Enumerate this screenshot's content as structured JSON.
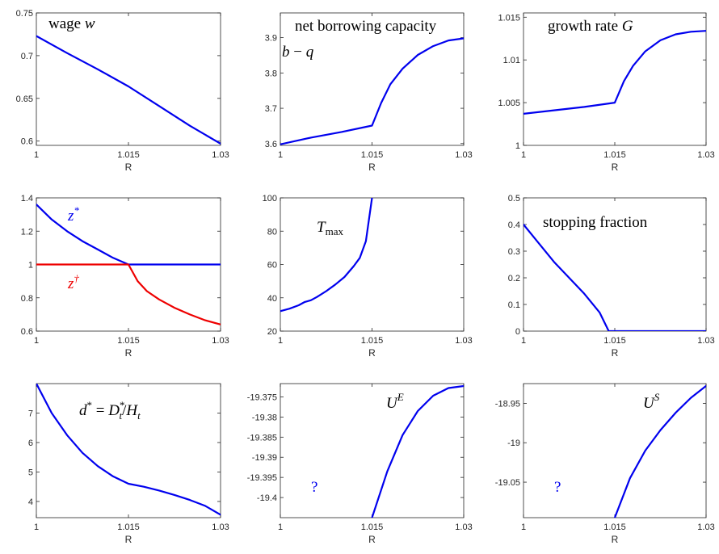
{
  "chart_data": [
    {
      "type": "line",
      "title": "",
      "xlabel": "R",
      "ylabel": "",
      "xlim": [
        1,
        1.03
      ],
      "ylim": [
        0.595,
        0.75
      ],
      "xticks": [
        1,
        1.015,
        1.03
      ],
      "xtick_labels": [
        "1",
        "1.015",
        "1.03"
      ],
      "yticks": [
        0.6,
        0.65,
        0.7,
        0.75
      ],
      "ytick_labels": [
        "0.6",
        "0.65",
        "0.7",
        "0.75"
      ],
      "annotation": "wage w",
      "series": [
        {
          "name": "",
          "color": "#0000ee",
          "x": [
            1,
            1.005,
            1.01,
            1.015,
            1.02,
            1.025,
            1.03
          ],
          "y": [
            0.723,
            0.703,
            0.684,
            0.664,
            0.641,
            0.618,
            0.597
          ]
        }
      ]
    },
    {
      "type": "line",
      "title": "",
      "xlabel": "R",
      "ylabel": "",
      "xlim": [
        1,
        1.03
      ],
      "ylim": [
        3.595,
        3.97
      ],
      "xticks": [
        1,
        1.015,
        1.03
      ],
      "xtick_labels": [
        "1",
        "1.015",
        "1.03"
      ],
      "yticks": [
        3.6,
        3.7,
        3.8,
        3.9
      ],
      "ytick_labels": [
        "3.6",
        "3.7",
        "3.8",
        "3.9"
      ],
      "annotation": "net borrowing capacity b − q",
      "series": [
        {
          "name": "",
          "color": "#0000ee",
          "x": [
            1,
            1.005,
            1.01,
            1.015,
            1.0165,
            1.018,
            1.02,
            1.0225,
            1.025,
            1.0275,
            1.03
          ],
          "y": [
            3.598,
            3.617,
            3.633,
            3.651,
            3.715,
            3.768,
            3.812,
            3.851,
            3.876,
            3.892,
            3.898
          ]
        }
      ]
    },
    {
      "type": "line",
      "title": "",
      "xlabel": "R",
      "ylabel": "",
      "xlim": [
        1,
        1.03
      ],
      "ylim": [
        1,
        1.0155
      ],
      "xticks": [
        1,
        1.015,
        1.03
      ],
      "xtick_labels": [
        "1",
        "1.015",
        "1.03"
      ],
      "yticks": [
        1,
        1.005,
        1.01,
        1.015
      ],
      "ytick_labels": [
        "1",
        "1.005",
        "1.01",
        "1.015"
      ],
      "annotation": "growth rate G",
      "series": [
        {
          "name": "",
          "color": "#0000ee",
          "x": [
            1,
            1.005,
            1.01,
            1.015,
            1.0165,
            1.018,
            1.02,
            1.0225,
            1.025,
            1.0275,
            1.03
          ],
          "y": [
            1.0037,
            1.0041,
            1.0045,
            1.005,
            1.0075,
            1.0093,
            1.011,
            1.0123,
            1.013,
            1.0133,
            1.0134
          ]
        }
      ]
    },
    {
      "type": "line",
      "title": "",
      "xlabel": "R",
      "ylabel": "",
      "xlim": [
        1,
        1.03
      ],
      "ylim": [
        0.6,
        1.4
      ],
      "xticks": [
        1,
        1.015,
        1.03
      ],
      "xtick_labels": [
        "1",
        "1.015",
        "1.03"
      ],
      "yticks": [
        0.6,
        0.8,
        1,
        1.2,
        1.4
      ],
      "ytick_labels": [
        "0.6",
        "0.8",
        "1",
        "1.2",
        "1.4"
      ],
      "annotation": "",
      "series": [
        {
          "name": "z*",
          "color": "#0000ee",
          "x": [
            1,
            1.0025,
            1.005,
            1.0075,
            1.01,
            1.0125,
            1.015,
            1.02,
            1.025,
            1.03
          ],
          "y": [
            1.36,
            1.27,
            1.2,
            1.14,
            1.09,
            1.04,
            1.0,
            1.0,
            1.0,
            1.0
          ]
        },
        {
          "name": "z†",
          "color": "#ee0000",
          "x": [
            1,
            1.005,
            1.01,
            1.015,
            1.0165,
            1.018,
            1.02,
            1.0225,
            1.025,
            1.0275,
            1.03
          ],
          "y": [
            1.0,
            1.0,
            1.0,
            1.0,
            0.9,
            0.84,
            0.79,
            0.74,
            0.7,
            0.665,
            0.64
          ]
        }
      ]
    },
    {
      "type": "line",
      "title": "",
      "xlabel": "R",
      "ylabel": "",
      "xlim": [
        1,
        1.03
      ],
      "ylim": [
        20,
        100
      ],
      "xticks": [
        1,
        1.015,
        1.03
      ],
      "xtick_labels": [
        "1",
        "1.015",
        "1.03"
      ],
      "yticks": [
        20,
        40,
        60,
        80,
        100
      ],
      "ytick_labels": [
        "20",
        "40",
        "60",
        "80",
        "100"
      ],
      "annotation": "T_max",
      "series": [
        {
          "name": "",
          "color": "#0000ee",
          "x": [
            1,
            1.0015,
            1.003,
            1.004,
            1.005,
            1.006,
            1.0075,
            1.009,
            1.0105,
            1.012,
            1.013,
            1.014,
            1.015
          ],
          "y": [
            32,
            33.5,
            35.5,
            37.5,
            38.5,
            40.5,
            44,
            48,
            52.5,
            59,
            64,
            74,
            100
          ]
        }
      ]
    },
    {
      "type": "line",
      "title": "",
      "xlabel": "R",
      "ylabel": "",
      "xlim": [
        1,
        1.03
      ],
      "ylim": [
        0,
        0.5
      ],
      "xticks": [
        1,
        1.015,
        1.03
      ],
      "xtick_labels": [
        "1",
        "1.015",
        "1.03"
      ],
      "yticks": [
        0,
        0.1,
        0.2,
        0.3,
        0.4,
        0.5
      ],
      "ytick_labels": [
        "0",
        "0.1",
        "0.2",
        "0.3",
        "0.4",
        "0.5"
      ],
      "annotation": "stopping fraction",
      "series": [
        {
          "name": "",
          "color": "#0000ee",
          "x": [
            1,
            1.0025,
            1.005,
            1.0075,
            1.01,
            1.0125,
            1.014,
            1.015,
            1.02,
            1.025,
            1.03
          ],
          "y": [
            0.4,
            0.33,
            0.26,
            0.2,
            0.14,
            0.07,
            0.0,
            0.0,
            0.0,
            0.0,
            0.0
          ]
        }
      ]
    },
    {
      "type": "line",
      "title": "",
      "xlabel": "R",
      "ylabel": "",
      "xlim": [
        1,
        1.03
      ],
      "ylim": [
        3.45,
        8.0
      ],
      "xticks": [
        1,
        1.015,
        1.03
      ],
      "xtick_labels": [
        "1",
        "1.015",
        "1.03"
      ],
      "yticks": [
        4,
        5,
        6,
        7
      ],
      "ytick_labels": [
        "4",
        "5",
        "6",
        "7"
      ],
      "annotation": "d* = D*_t / H_t",
      "series": [
        {
          "name": "",
          "color": "#0000ee",
          "x": [
            1,
            1.0025,
            1.005,
            1.0075,
            1.01,
            1.0125,
            1.015,
            1.0175,
            1.02,
            1.0225,
            1.025,
            1.0275,
            1.03
          ],
          "y": [
            8.0,
            7.0,
            6.25,
            5.65,
            5.2,
            4.85,
            4.6,
            4.5,
            4.37,
            4.22,
            4.05,
            3.85,
            3.55
          ]
        }
      ]
    },
    {
      "type": "line",
      "title": "",
      "xlabel": "R",
      "ylabel": "",
      "xlim": [
        1,
        1.03
      ],
      "ylim": [
        -19.405,
        -19.3717
      ],
      "xticks": [
        1,
        1.015,
        1.03
      ],
      "xtick_labels": [
        "1",
        "1.015",
        "1.03"
      ],
      "yticks": [
        -19.4,
        -19.395,
        -19.39,
        -19.385,
        -19.38,
        -19.375
      ],
      "ytick_labels": [
        "-19.4",
        "-19.395",
        "-19.39",
        "-19.385",
        "-19.38",
        "-19.375"
      ],
      "annotation": "U^E",
      "annotation_2": "?",
      "series": [
        {
          "name": "",
          "color": "#0000ee",
          "x": [
            1.015,
            1.0175,
            1.02,
            1.0225,
            1.025,
            1.0275,
            1.03
          ],
          "y": [
            -19.405,
            -19.3935,
            -19.3845,
            -19.3785,
            -19.3747,
            -19.3728,
            -19.3723
          ]
        }
      ]
    },
    {
      "type": "line",
      "title": "",
      "xlabel": "R",
      "ylabel": "",
      "xlim": [
        1,
        1.03
      ],
      "ylim": [
        -19.095,
        -18.925
      ],
      "xticks": [
        1,
        1.015,
        1.03
      ],
      "xtick_labels": [
        "1",
        "1.015",
        "1.03"
      ],
      "yticks": [
        -19.05,
        -19,
        -18.95
      ],
      "ytick_labels": [
        "-19.05",
        "-19",
        "-18.95"
      ],
      "annotation": "U^S",
      "annotation_2": "?",
      "series": [
        {
          "name": "",
          "color": "#0000ee",
          "x": [
            1.015,
            1.0175,
            1.02,
            1.0225,
            1.025,
            1.0275,
            1.03
          ],
          "y": [
            -19.095,
            -19.045,
            -19.01,
            -18.984,
            -18.962,
            -18.943,
            -18.928
          ]
        }
      ]
    }
  ]
}
